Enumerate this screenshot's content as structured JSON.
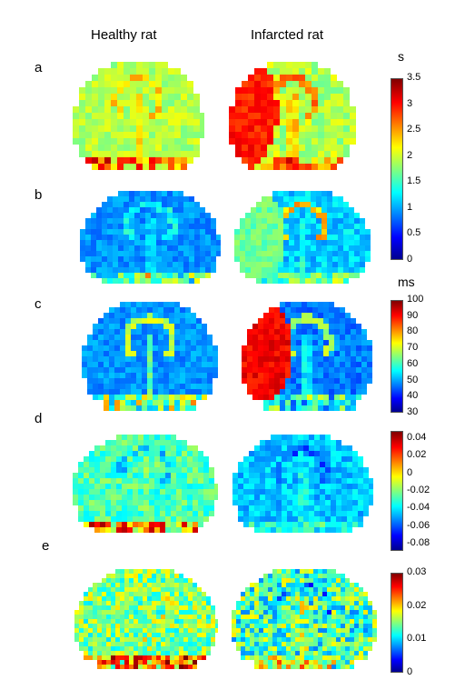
{
  "columns": {
    "left": "Healthy rat",
    "right": "Infarcted rat"
  },
  "rows": [
    "a",
    "b",
    "c",
    "d",
    "e"
  ],
  "colorbars": [
    {
      "unit": "s",
      "ticks": [
        "3.5",
        "3",
        "2.5",
        "2",
        "1.5",
        "1",
        "0.5",
        "0"
      ]
    },
    {
      "unit": "ms",
      "ticks": [
        "100",
        "90",
        "80",
        "70",
        "60",
        "50",
        "40",
        "30"
      ]
    },
    {
      "unit": "",
      "ticks": [
        "0.04",
        "0.02",
        "0",
        "-0.02",
        "-0.04",
        "-0.06",
        "-0.08"
      ]
    },
    {
      "unit": "",
      "ticks": [
        "0.03",
        "0.02",
        "0.01",
        "0"
      ]
    }
  ],
  "colormap": "jet"
}
